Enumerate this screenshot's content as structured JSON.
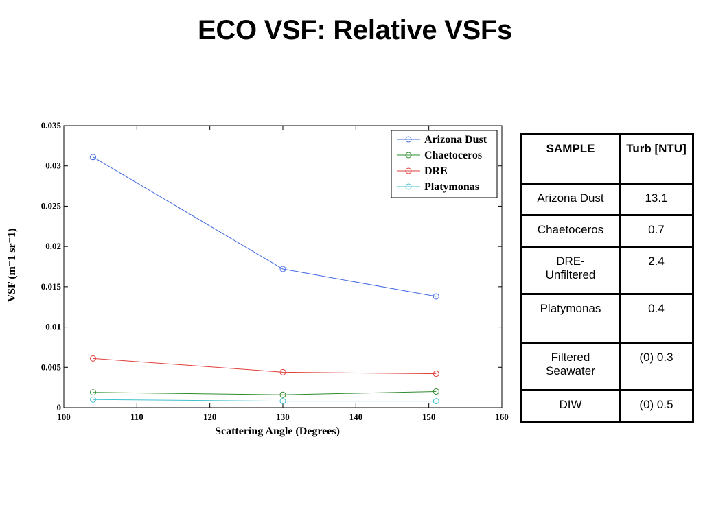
{
  "slide": {
    "title": "ECO VSF: Relative VSFs"
  },
  "chart_data": {
    "type": "line",
    "xlabel": "Scattering Angle (Degrees)",
    "ylabel": "VSF (m⁻1 sr⁻1)",
    "xlim": [
      100,
      160
    ],
    "ylim": [
      0,
      0.035
    ],
    "x_ticks": [
      "100",
      "110",
      "120",
      "130",
      "140",
      "150",
      "160"
    ],
    "y_ticks": [
      "0",
      "0.005",
      "0.01",
      "0.015",
      "0.02",
      "0.025",
      "0.03",
      "0.035"
    ],
    "grid": false,
    "legend_position": "top-right",
    "series": [
      {
        "name": "Arizona Dust",
        "color": "#4169e1",
        "x": [
          104,
          130,
          151
        ],
        "y": [
          0.0311,
          0.0172,
          0.0138
        ]
      },
      {
        "name": "Chaetoceros",
        "color": "#2e8b2e",
        "x": [
          104,
          130,
          151
        ],
        "y": [
          0.0019,
          0.0016,
          0.002
        ]
      },
      {
        "name": "DRE",
        "color": "#e0403c",
        "x": [
          104,
          130,
          151
        ],
        "y": [
          0.0061,
          0.0044,
          0.0042
        ]
      },
      {
        "name": "Platymonas",
        "color": "#40c0d0",
        "x": [
          104,
          130,
          151
        ],
        "y": [
          0.001,
          0.0008,
          0.0008
        ]
      }
    ]
  },
  "table": {
    "headers": [
      "SAMPLE",
      "Turb [NTU]"
    ],
    "rows": [
      [
        "Arizona Dust",
        "13.1"
      ],
      [
        "Chaetoceros",
        "0.7"
      ],
      [
        "DRE-Unfiltered",
        "2.4"
      ],
      [
        "Platymonas",
        "0.4"
      ],
      [
        "Filtered Seawater",
        "(0) 0.3"
      ],
      [
        "DIW",
        "(0) 0.5"
      ]
    ]
  }
}
